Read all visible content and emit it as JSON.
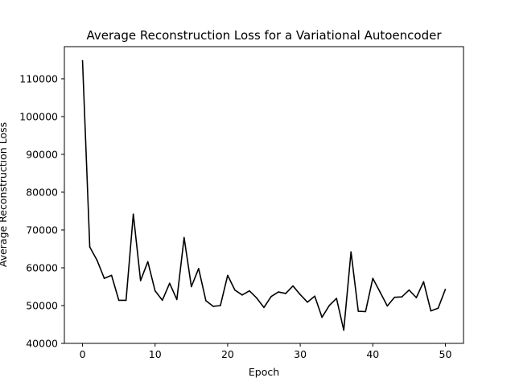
{
  "chart_data": {
    "type": "line",
    "title": "Average Reconstruction Loss for a Variational Autoencoder",
    "xlabel": "Epoch",
    "ylabel": "Average Reconstruction Loss",
    "xlim": [
      -2.5,
      52.5
    ],
    "ylim": [
      40000,
      118500
    ],
    "xticks": [
      0,
      10,
      20,
      30,
      40,
      50
    ],
    "yticks": [
      40000,
      50000,
      60000,
      70000,
      80000,
      90000,
      100000,
      110000
    ],
    "grid": false,
    "series": [
      {
        "color": "#000000",
        "x": [
          0,
          1,
          2,
          3,
          4,
          5,
          6,
          7,
          8,
          9,
          10,
          11,
          12,
          13,
          14,
          15,
          16,
          17,
          18,
          19,
          20,
          21,
          22,
          23,
          24,
          25,
          26,
          27,
          28,
          29,
          30,
          31,
          32,
          33,
          34,
          35,
          36,
          37,
          38,
          39,
          40,
          41,
          42,
          43,
          44,
          45,
          46,
          47,
          48,
          49,
          50
        ],
        "values": [
          114800,
          65500,
          62000,
          57200,
          58000,
          51400,
          51400,
          74200,
          56600,
          61600,
          53900,
          51400,
          55900,
          51600,
          68000,
          55000,
          59800,
          51300,
          49800,
          50000,
          58000,
          54100,
          52800,
          53900,
          52000,
          49500,
          52400,
          53600,
          53200,
          55200,
          52900,
          50900,
          52500,
          46900,
          50000,
          51900,
          43500,
          64200,
          48500,
          48400,
          57200,
          53600,
          49900,
          52200,
          52300,
          54100,
          52100,
          56300,
          48600,
          49300,
          54300
        ]
      }
    ]
  }
}
